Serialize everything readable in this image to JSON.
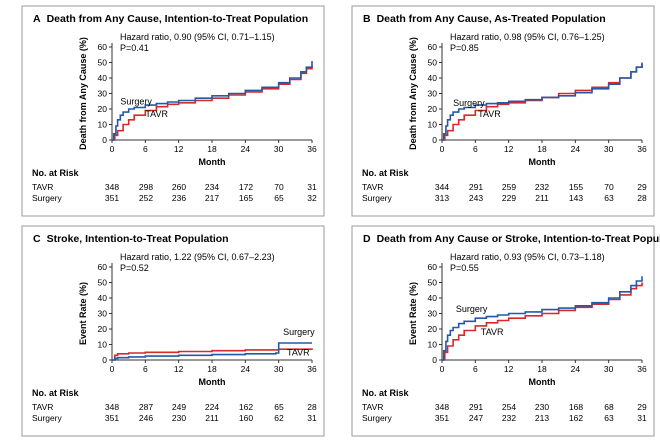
{
  "figure": {
    "risk_header": "No. at Risk",
    "month_label": "Month",
    "colors": {
      "tavr": "#d62a2a",
      "surgery": "#2459a8",
      "axis": "#333333",
      "frame": "#9a9a9a"
    }
  },
  "chart_data": [
    {
      "type": "line",
      "letter": "A",
      "title": "Death from Any Cause, Intention-to-Treat Population",
      "ylabel": "Death from Any Cause (%)",
      "xlabel": "Month",
      "xlim": [
        0,
        36
      ],
      "ylim": [
        0,
        60
      ],
      "xticks": [
        0,
        6,
        12,
        18,
        24,
        30,
        36
      ],
      "yticks": [
        0,
        10,
        20,
        30,
        40,
        50,
        60
      ],
      "annotation": [
        "Hazard ratio, 0.90 (95% CI, 0.71–1.15)",
        "P=0.41"
      ],
      "series_labels": [
        {
          "name": "Surgery",
          "text": "Surgery",
          "at": [
            1.5,
            23
          ]
        },
        {
          "name": "TAVR",
          "text": "TAVR",
          "at": [
            6,
            15
          ]
        }
      ],
      "series": [
        {
          "name": "TAVR",
          "color": "#d62a2a",
          "x": [
            0,
            0.5,
            1,
            2,
            3,
            4,
            6,
            8,
            10,
            12,
            15,
            18,
            21,
            24,
            27,
            30,
            32,
            34,
            35,
            36
          ],
          "y": [
            0,
            3,
            6,
            10,
            13,
            16,
            19,
            21.5,
            23,
            24,
            25.5,
            27,
            29,
            31,
            33,
            36,
            39,
            43,
            46,
            48
          ]
        },
        {
          "name": "Surgery",
          "color": "#2459a8",
          "x": [
            0,
            0.3,
            0.7,
            1,
            1.5,
            2,
            3,
            4,
            6,
            8,
            10,
            12,
            15,
            18,
            21,
            24,
            27,
            30,
            32,
            34,
            35,
            36
          ],
          "y": [
            0,
            4,
            9,
            13,
            16,
            18,
            20,
            21,
            22.5,
            23.5,
            24.5,
            25.5,
            27,
            28.5,
            30,
            32,
            34,
            37,
            40,
            44,
            47,
            51
          ]
        }
      ],
      "at_risk": {
        "header": "No. at Risk",
        "columns": [
          0,
          6,
          12,
          18,
          24,
          30,
          36
        ],
        "rows": [
          {
            "label": "TAVR",
            "values": [
              348,
              298,
              260,
              234,
              172,
              70,
              31
            ]
          },
          {
            "label": "Surgery",
            "values": [
              351,
              252,
              236,
              217,
              165,
              65,
              32
            ]
          }
        ]
      }
    },
    {
      "type": "line",
      "letter": "B",
      "title": "Death from Any Cause, As-Treated Population",
      "ylabel": "Death from Any Cause (%)",
      "xlabel": "Month",
      "xlim": [
        0,
        36
      ],
      "ylim": [
        0,
        60
      ],
      "xticks": [
        0,
        6,
        12,
        18,
        24,
        30,
        36
      ],
      "yticks": [
        0,
        10,
        20,
        30,
        40,
        50,
        60
      ],
      "annotation": [
        "Hazard ratio, 0.98 (95% CI, 0.76–1.25)",
        "P=0.85"
      ],
      "series_labels": [
        {
          "name": "Surgery",
          "text": "Surgery",
          "at": [
            2,
            22
          ]
        },
        {
          "name": "TAVR",
          "text": "TAVR",
          "at": [
            6.5,
            15
          ]
        }
      ],
      "series": [
        {
          "name": "TAVR",
          "color": "#d62a2a",
          "x": [
            0,
            0.5,
            1,
            2,
            3,
            4,
            6,
            8,
            10,
            12,
            15,
            18,
            21,
            24,
            27,
            30,
            32,
            34,
            35,
            36
          ],
          "y": [
            0,
            3,
            6,
            10,
            13,
            16,
            19,
            21.5,
            23,
            24,
            25.5,
            27.5,
            30,
            32,
            34,
            37,
            40,
            44,
            47,
            49
          ]
        },
        {
          "name": "Surgery",
          "color": "#2459a8",
          "x": [
            0,
            0.3,
            0.7,
            1,
            1.5,
            2,
            3,
            4,
            6,
            8,
            10,
            12,
            15,
            18,
            21,
            24,
            27,
            30,
            32,
            34,
            35,
            36
          ],
          "y": [
            0,
            4,
            9,
            13,
            16,
            18,
            20,
            21,
            22.5,
            23.5,
            24,
            25,
            26,
            27.5,
            28.5,
            30.5,
            33,
            36,
            40,
            44,
            47,
            50
          ]
        }
      ],
      "at_risk": {
        "header": "No. at Risk",
        "columns": [
          0,
          6,
          12,
          18,
          24,
          30,
          36
        ],
        "rows": [
          {
            "label": "TAVR",
            "values": [
              344,
              291,
              259,
              232,
              155,
              70,
              29
            ]
          },
          {
            "label": "Surgery",
            "values": [
              313,
              243,
              229,
              211,
              143,
              63,
              28
            ]
          }
        ]
      }
    },
    {
      "type": "line",
      "letter": "C",
      "title": "Stroke, Intention-to-Treat Population",
      "ylabel": "Event Rate (%)",
      "xlabel": "Month",
      "xlim": [
        0,
        36
      ],
      "ylim": [
        0,
        60
      ],
      "xticks": [
        0,
        6,
        12,
        18,
        24,
        30,
        36
      ],
      "yticks": [
        0,
        10,
        20,
        30,
        40,
        50,
        60
      ],
      "annotation": [
        "Hazard ratio, 1.22 (95% CI, 0.67–2.23)",
        "P=0.52"
      ],
      "series_labels": [
        {
          "name": "Surgery",
          "text": "Surgery",
          "at": [
            30.8,
            16
          ]
        },
        {
          "name": "TAVR",
          "text": "TAVR",
          "at": [
            31.5,
            3
          ]
        }
      ],
      "series": [
        {
          "name": "TAVR",
          "color": "#d62a2a",
          "x": [
            0,
            0.5,
            1,
            3,
            6,
            12,
            18,
            24,
            30,
            36
          ],
          "y": [
            0,
            3,
            4,
            4.5,
            5,
            5.5,
            6,
            6.5,
            7,
            7.5
          ]
        },
        {
          "name": "Surgery",
          "color": "#2459a8",
          "x": [
            0,
            0.5,
            1,
            3,
            6,
            12,
            18,
            24,
            29.5,
            30,
            36
          ],
          "y": [
            0,
            1,
            1.5,
            2,
            2.5,
            3,
            3.5,
            4,
            4.5,
            11,
            11
          ]
        }
      ],
      "at_risk": {
        "header": "No. at Risk",
        "columns": [
          0,
          6,
          12,
          18,
          24,
          30,
          36
        ],
        "rows": [
          {
            "label": "TAVR",
            "values": [
              348,
              287,
              249,
              224,
              162,
              65,
              28
            ]
          },
          {
            "label": "Surgery",
            "values": [
              351,
              246,
              230,
              211,
              160,
              62,
              31
            ]
          }
        ]
      }
    },
    {
      "type": "line",
      "letter": "D",
      "title": "Death from Any Cause or Stroke, Intention-to-Treat Population",
      "ylabel": "Event Rate (%)",
      "xlabel": "Month",
      "xlim": [
        0,
        36
      ],
      "ylim": [
        0,
        60
      ],
      "xticks": [
        0,
        6,
        12,
        18,
        24,
        30,
        36
      ],
      "yticks": [
        0,
        10,
        20,
        30,
        40,
        50,
        60
      ],
      "annotation": [
        "Hazard ratio, 0.93 (95% CI, 0.73–1.18)",
        "P=0.55"
      ],
      "series_labels": [
        {
          "name": "Surgery",
          "text": "Surgery",
          "at": [
            2.5,
            31
          ]
        },
        {
          "name": "TAVR",
          "text": "TAVR",
          "at": [
            7,
            16
          ]
        }
      ],
      "series": [
        {
          "name": "TAVR",
          "color": "#d62a2a",
          "x": [
            0,
            0.5,
            1,
            2,
            3,
            4,
            6,
            8,
            10,
            12,
            15,
            18,
            21,
            24,
            27,
            30,
            32,
            34,
            35,
            36
          ],
          "y": [
            0,
            5,
            9,
            13,
            16,
            19,
            22,
            24,
            25.5,
            27,
            28.5,
            30,
            32,
            34,
            36,
            39,
            42,
            46,
            48,
            50
          ]
        },
        {
          "name": "Surgery",
          "color": "#2459a8",
          "x": [
            0,
            0.3,
            0.7,
            1,
            1.5,
            2,
            3,
            4,
            6,
            8,
            10,
            12,
            15,
            18,
            21,
            24,
            27,
            30,
            32,
            34,
            35,
            36
          ],
          "y": [
            0,
            6,
            12,
            16,
            19,
            21,
            23.5,
            25,
            27,
            28,
            29,
            30,
            31,
            32.5,
            33.5,
            35,
            37,
            40,
            44,
            48,
            51,
            54
          ]
        }
      ],
      "at_risk": {
        "header": "No. at Risk",
        "columns": [
          0,
          6,
          12,
          18,
          24,
          30,
          36
        ],
        "rows": [
          {
            "label": "TAVR",
            "values": [
              348,
              291,
              254,
              230,
              168,
              68,
              29
            ]
          },
          {
            "label": "Surgery",
            "values": [
              351,
              247,
              232,
              213,
              162,
              63,
              31
            ]
          }
        ]
      }
    }
  ]
}
